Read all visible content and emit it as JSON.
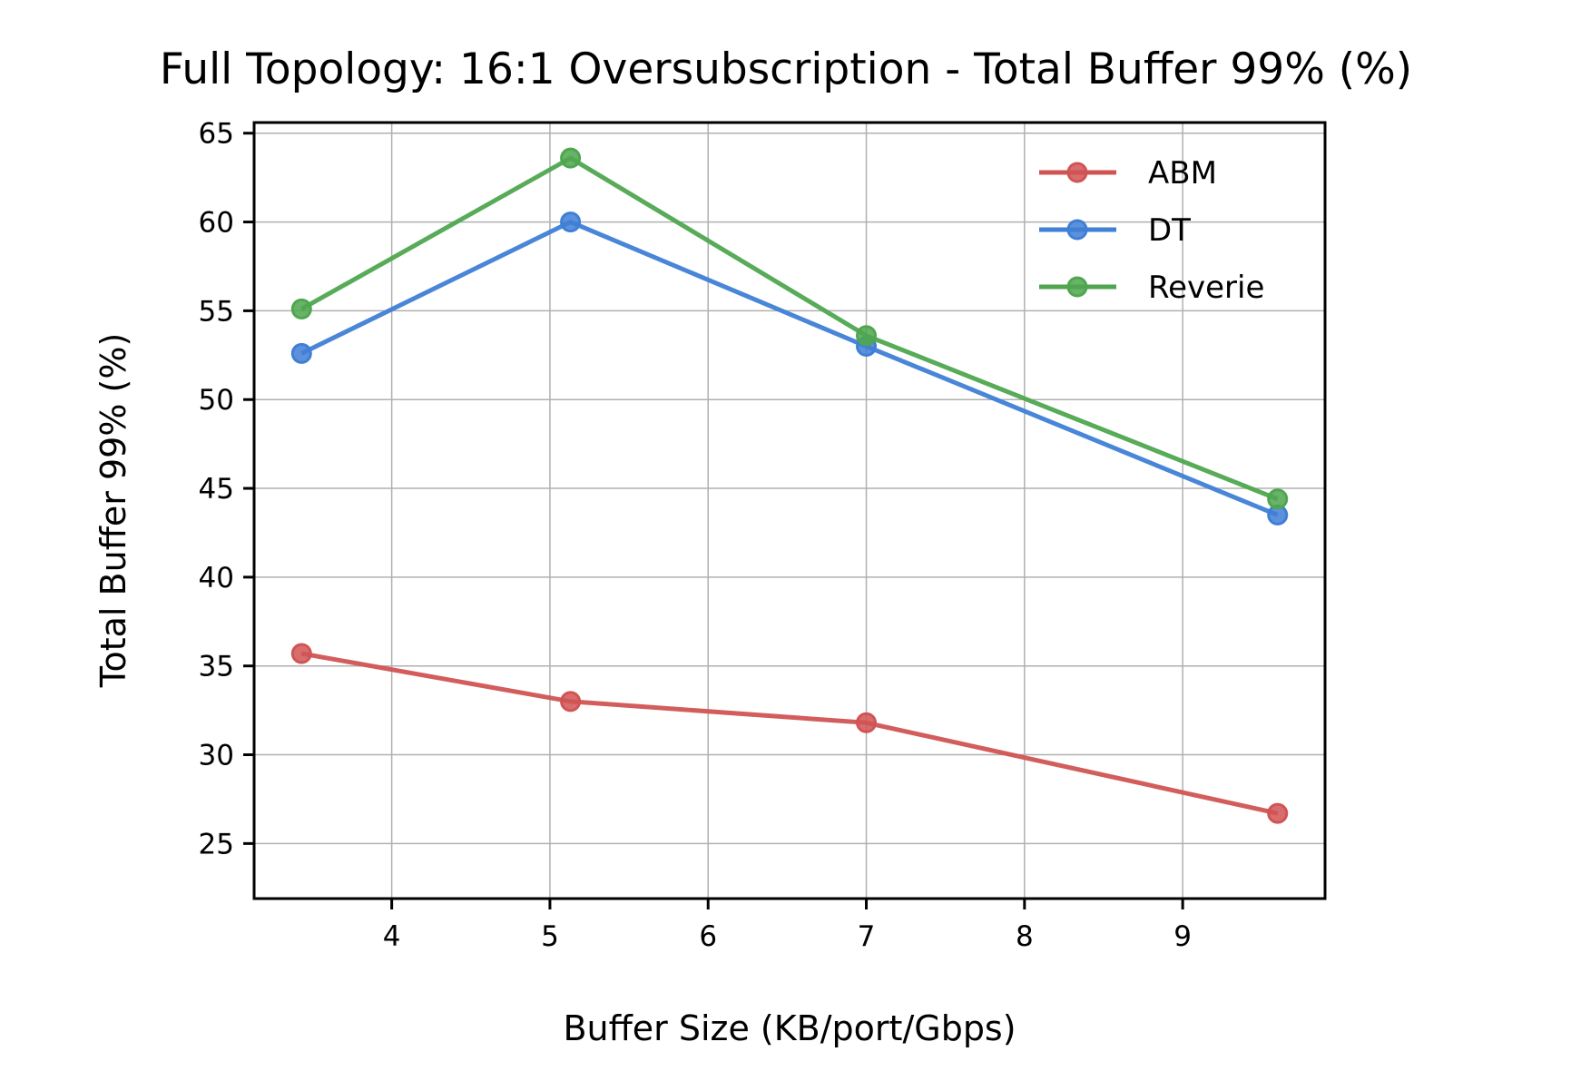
{
  "chart_data": {
    "type": "line",
    "title": "Full Topology: 16:1 Oversubscription - Total Buffer 99% (%)",
    "xlabel": "Buffer Size (KB/port/Gbps)",
    "ylabel": "Total Buffer 99% (%)",
    "xlim": [
      3.13,
      9.9
    ],
    "ylim": [
      21.9,
      65.6
    ],
    "xticks": [
      4,
      5,
      6,
      7,
      8,
      9
    ],
    "yticks": [
      25,
      30,
      35,
      40,
      45,
      50,
      55,
      60,
      65
    ],
    "grid": true,
    "legend_position": "top-right",
    "x": [
      3.43,
      5.13,
      7.0,
      9.6
    ],
    "series": [
      {
        "name": "ABM",
        "color": "#d15454",
        "values": [
          35.7,
          33.0,
          31.8,
          26.7
        ]
      },
      {
        "name": "DT",
        "color": "#3f7fd6",
        "values": [
          52.6,
          60.0,
          53.0,
          43.5
        ]
      },
      {
        "name": "Reverie",
        "color": "#4fa64f",
        "values": [
          55.1,
          63.6,
          53.6,
          44.4
        ]
      }
    ]
  }
}
